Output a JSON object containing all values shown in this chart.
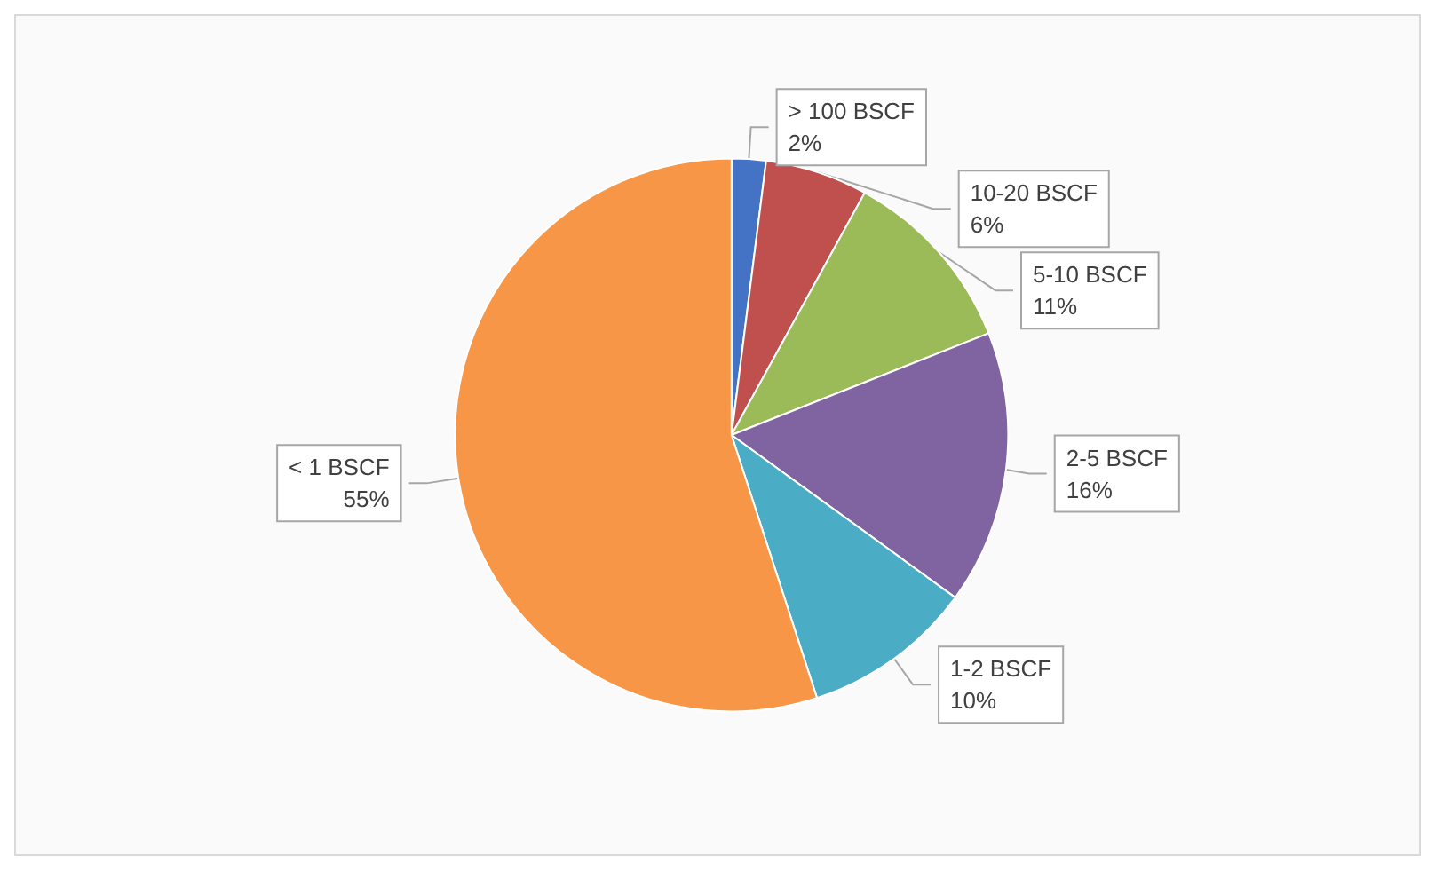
{
  "chart_data": {
    "type": "pie",
    "categories": [
      "> 100 BSCF",
      "10-20 BSCF",
      "5-10 BSCF",
      "2-5 BSCF",
      "1-2 BSCF",
      "< 1 BSCF"
    ],
    "values": [
      2,
      6,
      11,
      16,
      10,
      55
    ],
    "colors": [
      "#4472c4",
      "#c0504d",
      "#9bbb59",
      "#8064a2",
      "#4bacc6",
      "#f79646"
    ],
    "value_labels": [
      "2%",
      "6%",
      "11%",
      "16%",
      "10%",
      "55%"
    ]
  }
}
